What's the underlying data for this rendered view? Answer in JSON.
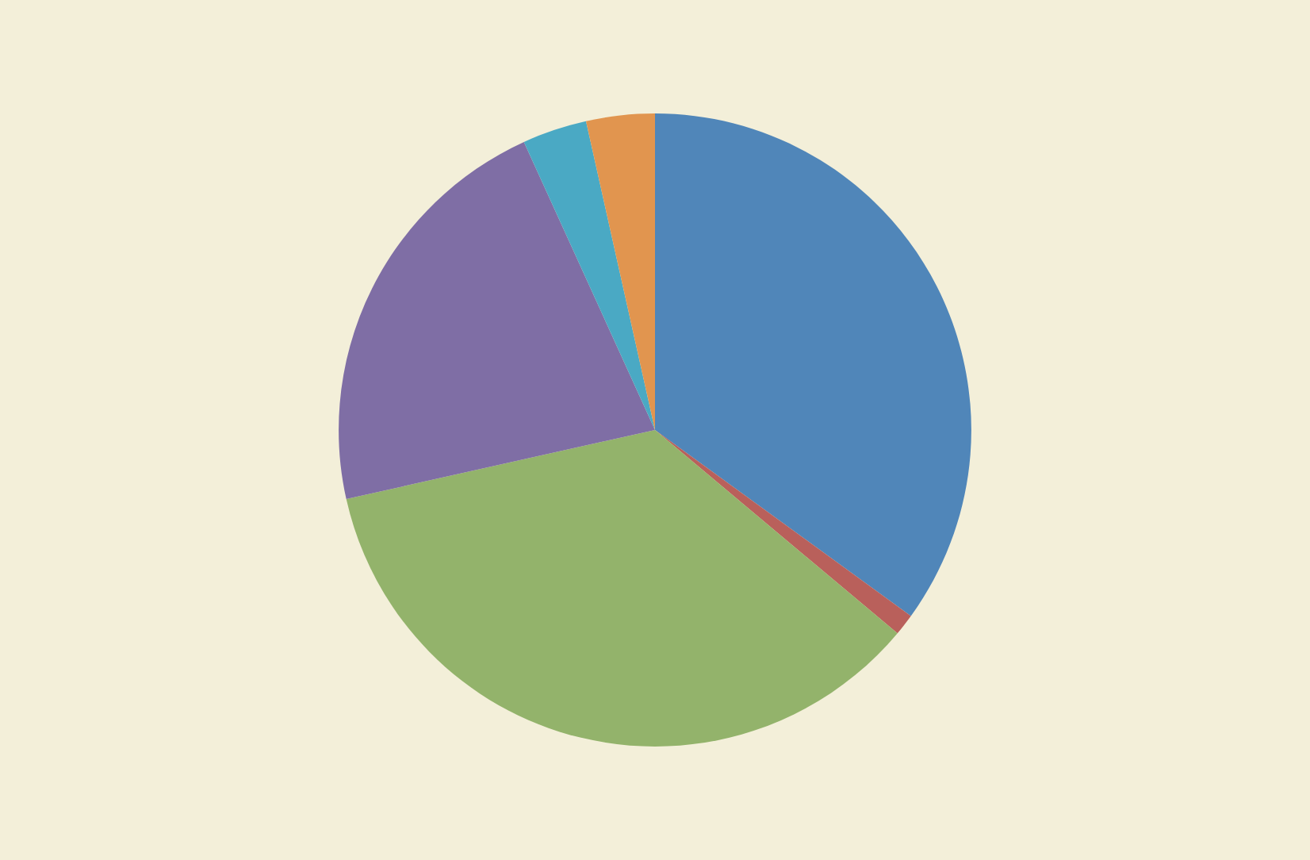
{
  "chart_data": {
    "type": "pie",
    "categories": [
      null,
      null,
      null,
      null,
      null,
      null
    ],
    "values": [
      35.0,
      1.1,
      35.4,
      21.7,
      3.3,
      3.5
    ],
    "colors": [
      "#5086b9",
      "#b9605b",
      "#93b36b",
      "#7f6ea5",
      "#4aa9c4",
      "#e1954f"
    ],
    "legend": false
  }
}
